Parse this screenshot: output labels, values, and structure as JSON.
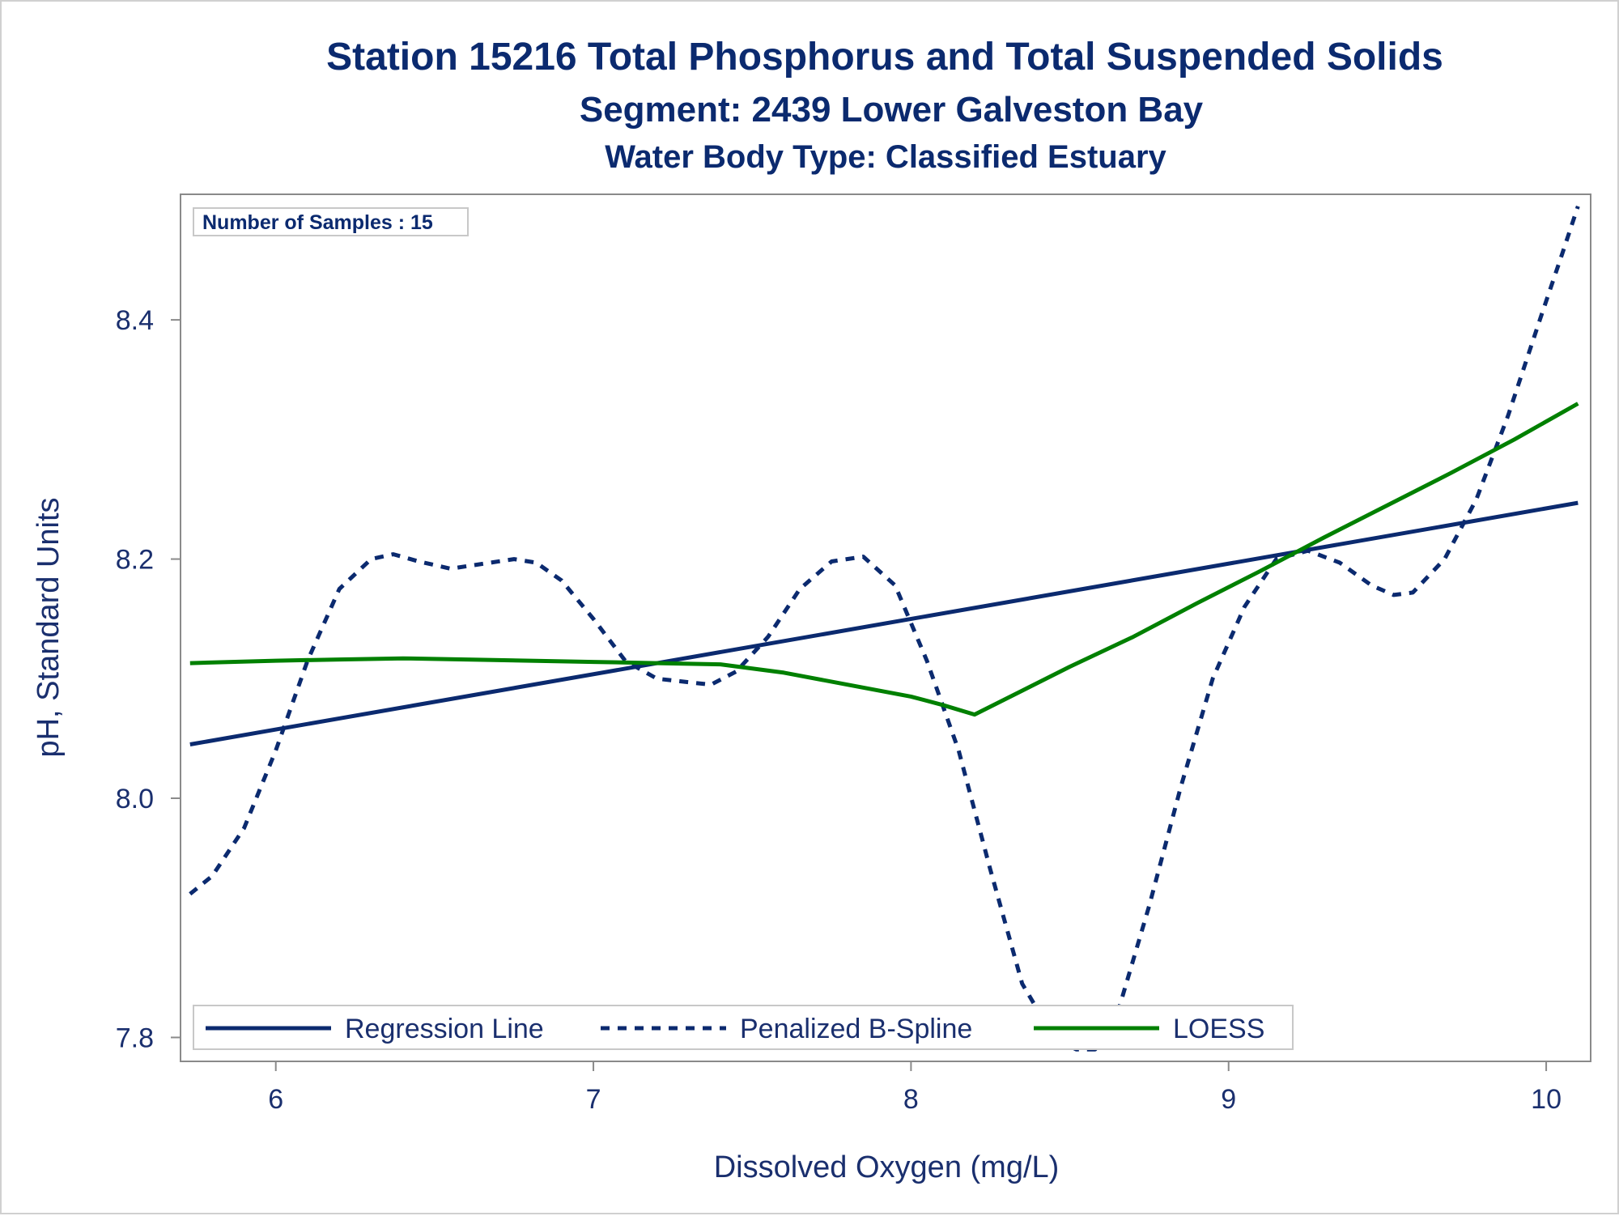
{
  "chart_data": {
    "type": "line",
    "title": "Station 15216  Total Phosphorus and Total Suspended Solids",
    "subtitle": "Segment: 2439  Lower Galveston Bay",
    "subtitle2": "Water Body Type: Classified Estuary",
    "xlabel": "Dissolved Oxygen (mg/L)",
    "ylabel": "pH, Standard Units",
    "xlim": [
      5.7,
      10.14
    ],
    "ylim": [
      7.78,
      8.505
    ],
    "x_ticks": [
      "6",
      "7",
      "8",
      "9",
      "10"
    ],
    "x_tick_values": [
      6,
      7,
      8,
      9,
      10
    ],
    "y_ticks": [
      "7.8",
      "8.0",
      "8.2",
      "8.4"
    ],
    "y_tick_values": [
      7.8,
      8.0,
      8.2,
      8.4
    ],
    "inset_label": "Number of Samples : 15",
    "legend_position": "bottom-left",
    "series": [
      {
        "name": "Regression Line",
        "color": "#0b2a6f",
        "style": "solid",
        "x": [
          5.73,
          10.1
        ],
        "y": [
          8.045,
          8.247
        ]
      },
      {
        "name": "Penalized B-Spline",
        "color": "#0b2a6f",
        "style": "dashed",
        "x": [
          5.73,
          5.8,
          5.9,
          6.0,
          6.1,
          6.2,
          6.3,
          6.37,
          6.45,
          6.55,
          6.65,
          6.75,
          6.82,
          6.9,
          7.0,
          7.1,
          7.2,
          7.3,
          7.37,
          7.45,
          7.55,
          7.65,
          7.75,
          7.85,
          7.95,
          8.05,
          8.15,
          8.25,
          8.35,
          8.45,
          8.52,
          8.58,
          8.65,
          8.75,
          8.85,
          8.95,
          9.05,
          9.15,
          9.25,
          9.35,
          9.45,
          9.52,
          9.58,
          9.68,
          9.78,
          9.88,
          9.98,
          10.05,
          10.1
        ],
        "y": [
          7.92,
          7.935,
          7.975,
          8.04,
          8.115,
          8.175,
          8.2,
          8.204,
          8.198,
          8.192,
          8.196,
          8.2,
          8.197,
          8.182,
          8.15,
          8.115,
          8.1,
          8.097,
          8.095,
          8.106,
          8.135,
          8.175,
          8.198,
          8.202,
          8.178,
          8.115,
          8.04,
          7.94,
          7.845,
          7.8,
          7.79,
          7.79,
          7.82,
          7.91,
          8.01,
          8.1,
          8.16,
          8.2,
          8.207,
          8.197,
          8.178,
          8.17,
          8.172,
          8.2,
          8.25,
          8.32,
          8.4,
          8.455,
          8.495
        ]
      },
      {
        "name": "LOESS",
        "color": "#008000",
        "style": "solid",
        "x": [
          5.73,
          6.0,
          6.2,
          6.4,
          6.6,
          6.8,
          7.0,
          7.2,
          7.4,
          7.6,
          7.8,
          8.0,
          8.1,
          8.2,
          8.35,
          8.5,
          8.7,
          8.9,
          9.1,
          9.3,
          9.5,
          9.7,
          9.9,
          10.1
        ],
        "y": [
          8.113,
          8.115,
          8.116,
          8.117,
          8.116,
          8.115,
          8.114,
          8.113,
          8.112,
          8.105,
          8.095,
          8.085,
          8.078,
          8.07,
          8.09,
          8.11,
          8.135,
          8.163,
          8.19,
          8.218,
          8.245,
          8.272,
          8.3,
          8.33
        ]
      }
    ]
  }
}
